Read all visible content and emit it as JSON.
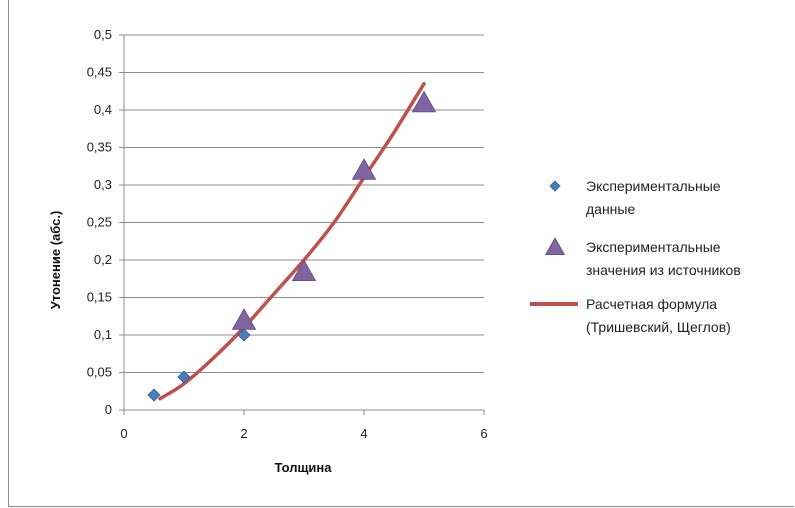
{
  "chart_data": {
    "type": "scatter",
    "title": "",
    "xlabel": "Толщина",
    "ylabel": "Утонение (абс.)",
    "xlim": [
      0,
      6
    ],
    "ylim": [
      0,
      0.5
    ],
    "x_ticks": [
      0,
      2,
      4,
      6
    ],
    "y_ticks": [
      0,
      0.05,
      0.1,
      0.15,
      0.2,
      0.25,
      0.3,
      0.35,
      0.4,
      0.45,
      0.5
    ],
    "x_tick_labels": [
      "0",
      "2",
      "4",
      "6"
    ],
    "y_tick_labels": [
      "0",
      "0,05",
      "0,1",
      "0,15",
      "0,2",
      "0,25",
      "0,3",
      "0,35",
      "0,4",
      "0,45",
      "0,5"
    ],
    "grid": "horizontal",
    "legend_position": "right",
    "series": [
      {
        "name": "Экспериментальные данные",
        "legend_lines": [
          "Экспериментальные",
          "данные"
        ],
        "marker": "diamond",
        "color": "#4a7ebb",
        "x": [
          0.5,
          1.0,
          2.0
        ],
        "y": [
          0.02,
          0.044,
          0.1
        ]
      },
      {
        "name": "Экспериментальные значения из источников",
        "legend_lines": [
          "Экспериментальные",
          "значения из источников"
        ],
        "marker": "triangle",
        "color": "#8064a2",
        "x": [
          2.0,
          3.0,
          4.0,
          5.0
        ],
        "y": [
          0.12,
          0.185,
          0.32,
          0.41
        ]
      },
      {
        "name": "Расчетная формула (Тришевский, Щеглов)",
        "legend_lines": [
          "Расчетная формула",
          "(Тришевский, Щеглов)"
        ],
        "marker": "line",
        "color": "#c0504d",
        "x": [
          0.6,
          1.0,
          1.5,
          2.0,
          2.5,
          3.0,
          3.5,
          4.0,
          4.5,
          5.0
        ],
        "y": [
          0.015,
          0.035,
          0.07,
          0.11,
          0.155,
          0.2,
          0.25,
          0.31,
          0.37,
          0.435
        ]
      }
    ]
  }
}
